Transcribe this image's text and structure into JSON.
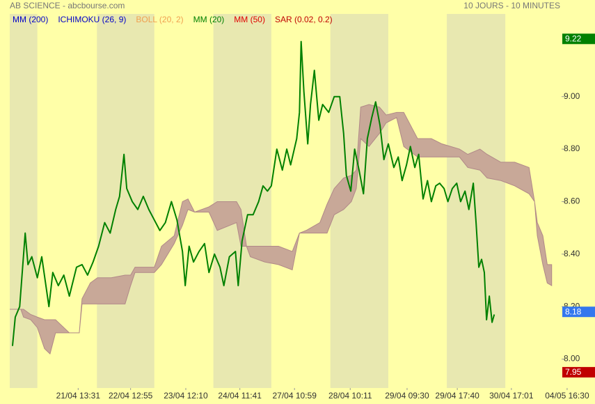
{
  "chart_data": {
    "type": "line",
    "title": "AB SCIENCE - abcbourse.com",
    "subtitle": "10 JOURS - 10 MINUTES",
    "indicators": [
      {
        "name": "MM (200)",
        "color": "#0000c8"
      },
      {
        "name": "ICHIMOKU (26, 9)",
        "color": "#0000c8"
      },
      {
        "name": "BOLL (20, 2)",
        "color": "#f0a050"
      },
      {
        "name": "MM (20)",
        "color": "#008000"
      },
      {
        "name": "MM (50)",
        "color": "#e00000"
      },
      {
        "name": "SAR (0.02, 0.2)",
        "color": "#c00000"
      }
    ],
    "xlim": [
      0,
      100
    ],
    "ylim": [
      7.89,
      9.315
    ],
    "yticks": [
      {
        "value": 8,
        "label": "8.00"
      },
      {
        "value": 8.2,
        "label": "8.20"
      },
      {
        "value": 8.4,
        "label": "8.40"
      },
      {
        "value": 8.6,
        "label": "8.60"
      },
      {
        "value": 8.8,
        "label": "8.80"
      },
      {
        "value": 9,
        "label": "9.00"
      }
    ],
    "xticks": [
      {
        "value": 12.4,
        "label": "21/04 13:31"
      },
      {
        "value": 21.9,
        "label": "22/04 12:55"
      },
      {
        "value": 31.9,
        "label": "23/04 12:10"
      },
      {
        "value": 41.7,
        "label": "24/04 11:41"
      },
      {
        "value": 51.6,
        "label": "27/04 10:59"
      },
      {
        "value": 61.7,
        "label": "28/04 10:11"
      },
      {
        "value": 72.0,
        "label": "29/04 09:30"
      },
      {
        "value": 81.1,
        "label": "29/04 17:40"
      },
      {
        "value": 90.9,
        "label": "30/04 17:01"
      },
      {
        "value": 101,
        "label": "04/05 16:30"
      }
    ],
    "shaded_bands": [
      [
        0,
        5.0
      ],
      [
        15.8,
        26.2
      ],
      [
        36.9,
        47.4
      ],
      [
        58.1,
        68.6
      ],
      [
        79.2,
        89.8
      ]
    ],
    "band_color": "#e8e8b0",
    "cloud": {
      "color": "#c8a898",
      "edge_color": "#b08888",
      "x": [
        0,
        2.0,
        2.5,
        3.8,
        5.0,
        6.3,
        7.3,
        8.3,
        10.8,
        12.6,
        13.1,
        14.6,
        15.9,
        18.4,
        20.9,
        21.9,
        22.7,
        26.2,
        27.5,
        29.8,
        31.3,
        32.3,
        33.5,
        36.1,
        37.6,
        41.1,
        41.9,
        42.9,
        43.6,
        46.2,
        48.7,
        51.2,
        52.5,
        53.7,
        56.2,
        57.5,
        58.8,
        60.5,
        61.9,
        62.8,
        63.6,
        65.1,
        67.0,
        68.2,
        70.1,
        71.4,
        73.9,
        76.4,
        78.3,
        81.5,
        83.0,
        85.2,
        86.5,
        89.0,
        91.5,
        94.1,
        95.1,
        95.6,
        96.6,
        97.4,
        98.2
      ],
      "upper": [
        8.19,
        8.19,
        8.19,
        8.17,
        8.16,
        8.15,
        8.15,
        8.15,
        8.1,
        8.1,
        8.23,
        8.29,
        8.31,
        8.31,
        8.32,
        8.32,
        8.35,
        8.35,
        8.43,
        8.47,
        8.6,
        8.61,
        8.56,
        8.58,
        8.6,
        8.6,
        8.57,
        8.43,
        8.43,
        8.43,
        8.43,
        8.41,
        8.48,
        8.49,
        8.52,
        8.59,
        8.65,
        8.69,
        8.7,
        8.72,
        8.96,
        8.97,
        8.96,
        8.93,
        8.94,
        8.94,
        8.84,
        8.84,
        8.82,
        8.8,
        8.78,
        8.8,
        8.78,
        8.75,
        8.75,
        8.73,
        8.6,
        8.52,
        8.47,
        8.36,
        8.36
      ],
      "lower": [
        8.19,
        8.19,
        8.16,
        8.15,
        8.12,
        8.04,
        8.02,
        8.1,
        8.1,
        8.1,
        8.21,
        8.21,
        8.21,
        8.21,
        8.21,
        8.28,
        8.33,
        8.33,
        8.36,
        8.44,
        8.51,
        8.57,
        8.56,
        8.56,
        8.49,
        8.52,
        8.43,
        8.43,
        8.39,
        8.37,
        8.36,
        8.34,
        8.48,
        8.48,
        8.48,
        8.48,
        8.55,
        8.57,
        8.6,
        8.65,
        8.84,
        8.81,
        8.86,
        8.9,
        8.92,
        8.81,
        8.77,
        8.77,
        8.77,
        8.77,
        8.73,
        8.72,
        8.69,
        8.68,
        8.66,
        8.63,
        8.6,
        8.47,
        8.36,
        8.29,
        8.28
      ]
    },
    "series": [
      {
        "color": "#008000",
        "x": [
          0.5,
          1.0,
          1.8,
          2.8,
          3.3,
          4.0,
          5.0,
          5.8,
          7.1,
          7.8,
          8.8,
          9.8,
          10.8,
          12.1,
          13.1,
          14.1,
          15.1,
          16.1,
          17.2,
          18.2,
          19.2,
          19.9,
          20.7,
          21.2,
          22.2,
          23.2,
          24.2,
          25.2,
          26.2,
          27.2,
          28.2,
          29.3,
          30.3,
          31.3,
          31.8,
          32.5,
          33.3,
          34.3,
          35.3,
          36.1,
          37.1,
          38.1,
          38.8,
          39.8,
          40.9,
          41.4,
          42.1,
          43.1,
          44.1,
          45.1,
          45.9,
          46.7,
          47.4,
          48.4,
          49.4,
          50.2,
          50.9,
          52.0,
          52.5,
          52.8,
          53.3,
          54.0,
          54.5,
          55.2,
          56.0,
          56.7,
          57.8,
          58.8,
          59.8,
          60.5,
          61.0,
          61.8,
          62.5,
          63.3,
          64.1,
          64.8,
          65.6,
          66.3,
          67.1,
          67.8,
          68.6,
          69.6,
          70.4,
          71.1,
          71.9,
          72.6,
          73.4,
          74.1,
          74.9,
          75.7,
          76.4,
          77.2,
          77.9,
          78.7,
          79.4,
          80.2,
          81.0,
          81.7,
          82.5,
          83.2,
          84.0,
          84.5,
          85.0,
          85.5,
          86.0,
          86.4,
          86.9,
          87.4,
          87.8
        ],
        "values": [
          8.05,
          8.16,
          8.2,
          8.48,
          8.36,
          8.39,
          8.31,
          8.39,
          8.2,
          8.33,
          8.28,
          8.32,
          8.24,
          8.35,
          8.36,
          8.32,
          8.37,
          8.43,
          8.52,
          8.48,
          8.57,
          8.62,
          8.78,
          8.65,
          8.6,
          8.57,
          8.62,
          8.57,
          8.53,
          8.49,
          8.52,
          8.6,
          8.53,
          8.41,
          8.28,
          8.43,
          8.37,
          8.41,
          8.44,
          8.33,
          8.4,
          8.35,
          8.28,
          8.39,
          8.41,
          8.28,
          8.45,
          8.55,
          8.55,
          8.6,
          8.66,
          8.64,
          8.66,
          8.8,
          8.72,
          8.8,
          8.74,
          8.84,
          8.94,
          9.21,
          9.02,
          8.82,
          8.97,
          9.1,
          8.91,
          8.97,
          8.94,
          9.0,
          9.0,
          8.86,
          8.7,
          8.64,
          8.8,
          8.72,
          8.63,
          8.84,
          8.92,
          8.98,
          8.89,
          8.76,
          8.82,
          8.73,
          8.77,
          8.68,
          8.74,
          8.81,
          8.73,
          8.78,
          8.61,
          8.68,
          8.6,
          8.66,
          8.67,
          8.65,
          8.6,
          8.65,
          8.67,
          8.6,
          8.64,
          8.57,
          8.67,
          8.52,
          8.35,
          8.38,
          8.33,
          8.15,
          8.24,
          8.14,
          8.17
        ]
      }
    ],
    "price_labels": [
      {
        "value": 9.22,
        "color": "#008000"
      },
      {
        "value": 8.18,
        "color": "#3377ee"
      },
      {
        "value": 7.95,
        "color": "#c00000"
      }
    ]
  }
}
